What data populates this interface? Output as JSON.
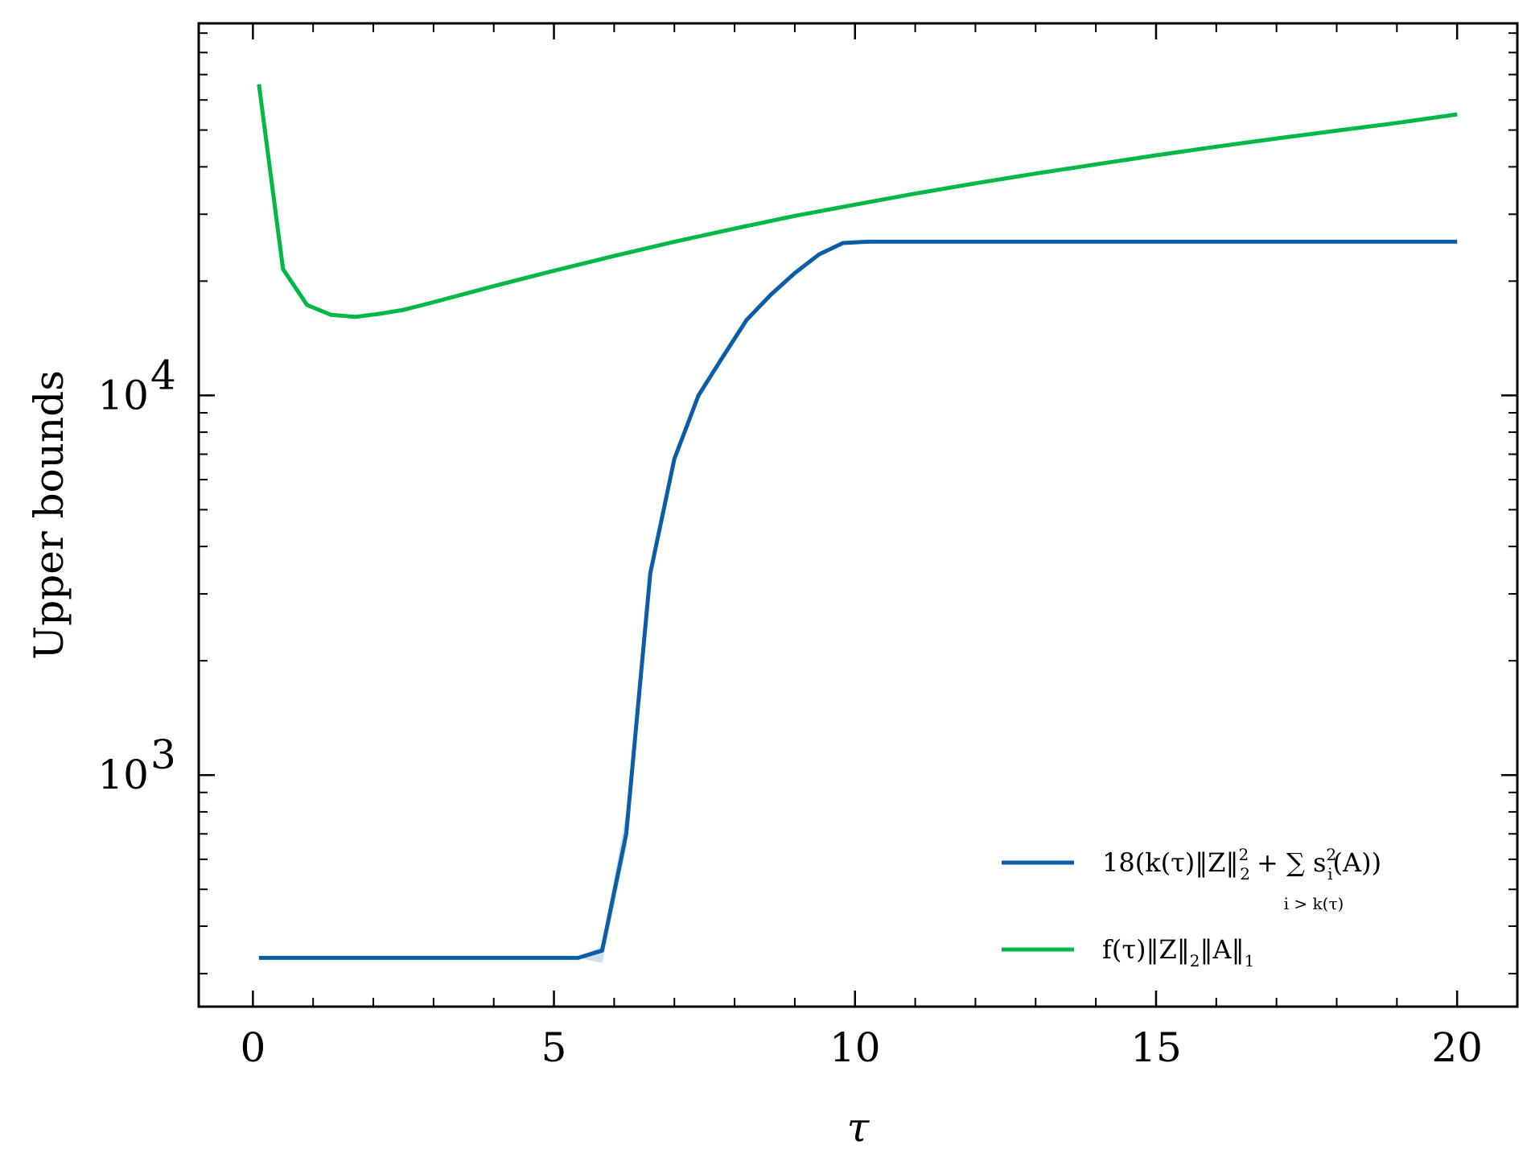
{
  "chart_data": {
    "type": "line",
    "title": "",
    "xlabel": "τ",
    "ylabel": "Upper bounds",
    "xlim": [
      -0.9,
      21
    ],
    "ylim_log10": [
      2.39,
      4.98
    ],
    "yscale": "log",
    "grid": false,
    "legend_position": "lower-right",
    "x_ticks": [
      0,
      5,
      10,
      15,
      20
    ],
    "x_tick_labels": [
      "0",
      "5",
      "10",
      "15",
      "20"
    ],
    "y_ticks": [
      1000,
      10000
    ],
    "y_tick_labels": [
      {
        "base": "10",
        "exp": "3"
      },
      {
        "base": "10",
        "exp": "4"
      }
    ],
    "series": [
      {
        "name": "18(k(τ)‖Z‖²₂ + Σ s²ᵢ(A))",
        "legend_main": "18(k(τ)‖Z‖",
        "legend_rest": "+ ∑ s",
        "legend_sub": "i > k(τ)",
        "color": "#0c5da5",
        "x": [
          0.1,
          0.5,
          1,
          2,
          3,
          4,
          5,
          5.4,
          5.8,
          6.2,
          6.6,
          7.0,
          7.4,
          7.8,
          8.2,
          8.6,
          9.0,
          9.4,
          9.8,
          10.2,
          11,
          13,
          15,
          17,
          20
        ],
        "y": [
          330,
          330,
          330,
          330,
          330,
          330,
          330,
          330,
          345,
          700,
          3400,
          6800,
          10000,
          12600,
          15800,
          18400,
          21000,
          23500,
          25200,
          25400,
          25400,
          25400,
          25400,
          25400,
          25400
        ],
        "band_upper": [
          330,
          330,
          330,
          330,
          330,
          330,
          330,
          330,
          355,
          800,
          3400,
          6800,
          10000,
          12600,
          15800,
          18400,
          21000,
          23500,
          25200,
          25400,
          25400,
          25400,
          25400,
          25400,
          25400
        ],
        "band_lower": [
          330,
          330,
          330,
          330,
          330,
          330,
          330,
          330,
          320,
          640,
          3400,
          6800,
          10000,
          12600,
          15800,
          18400,
          21000,
          23500,
          25200,
          25400,
          25400,
          25400,
          25400,
          25400,
          25400
        ]
      },
      {
        "name": "f(τ)‖Z‖₂‖A‖₁",
        "legend_main": "f(τ)‖Z‖",
        "color": "#00b945",
        "x": [
          0.1,
          0.5,
          0.9,
          1.3,
          1.7,
          2.1,
          2.5,
          3,
          4,
          5,
          6,
          7,
          8,
          9,
          10,
          11,
          12,
          13,
          14,
          15,
          16,
          17,
          18,
          19,
          20
        ],
        "y": [
          66000,
          21500,
          17300,
          16300,
          16100,
          16400,
          16800,
          17600,
          19400,
          21300,
          23300,
          25400,
          27500,
          29700,
          31800,
          34000,
          36200,
          38400,
          40600,
          42900,
          45200,
          47500,
          49800,
          52200,
          55000
        ]
      }
    ]
  }
}
